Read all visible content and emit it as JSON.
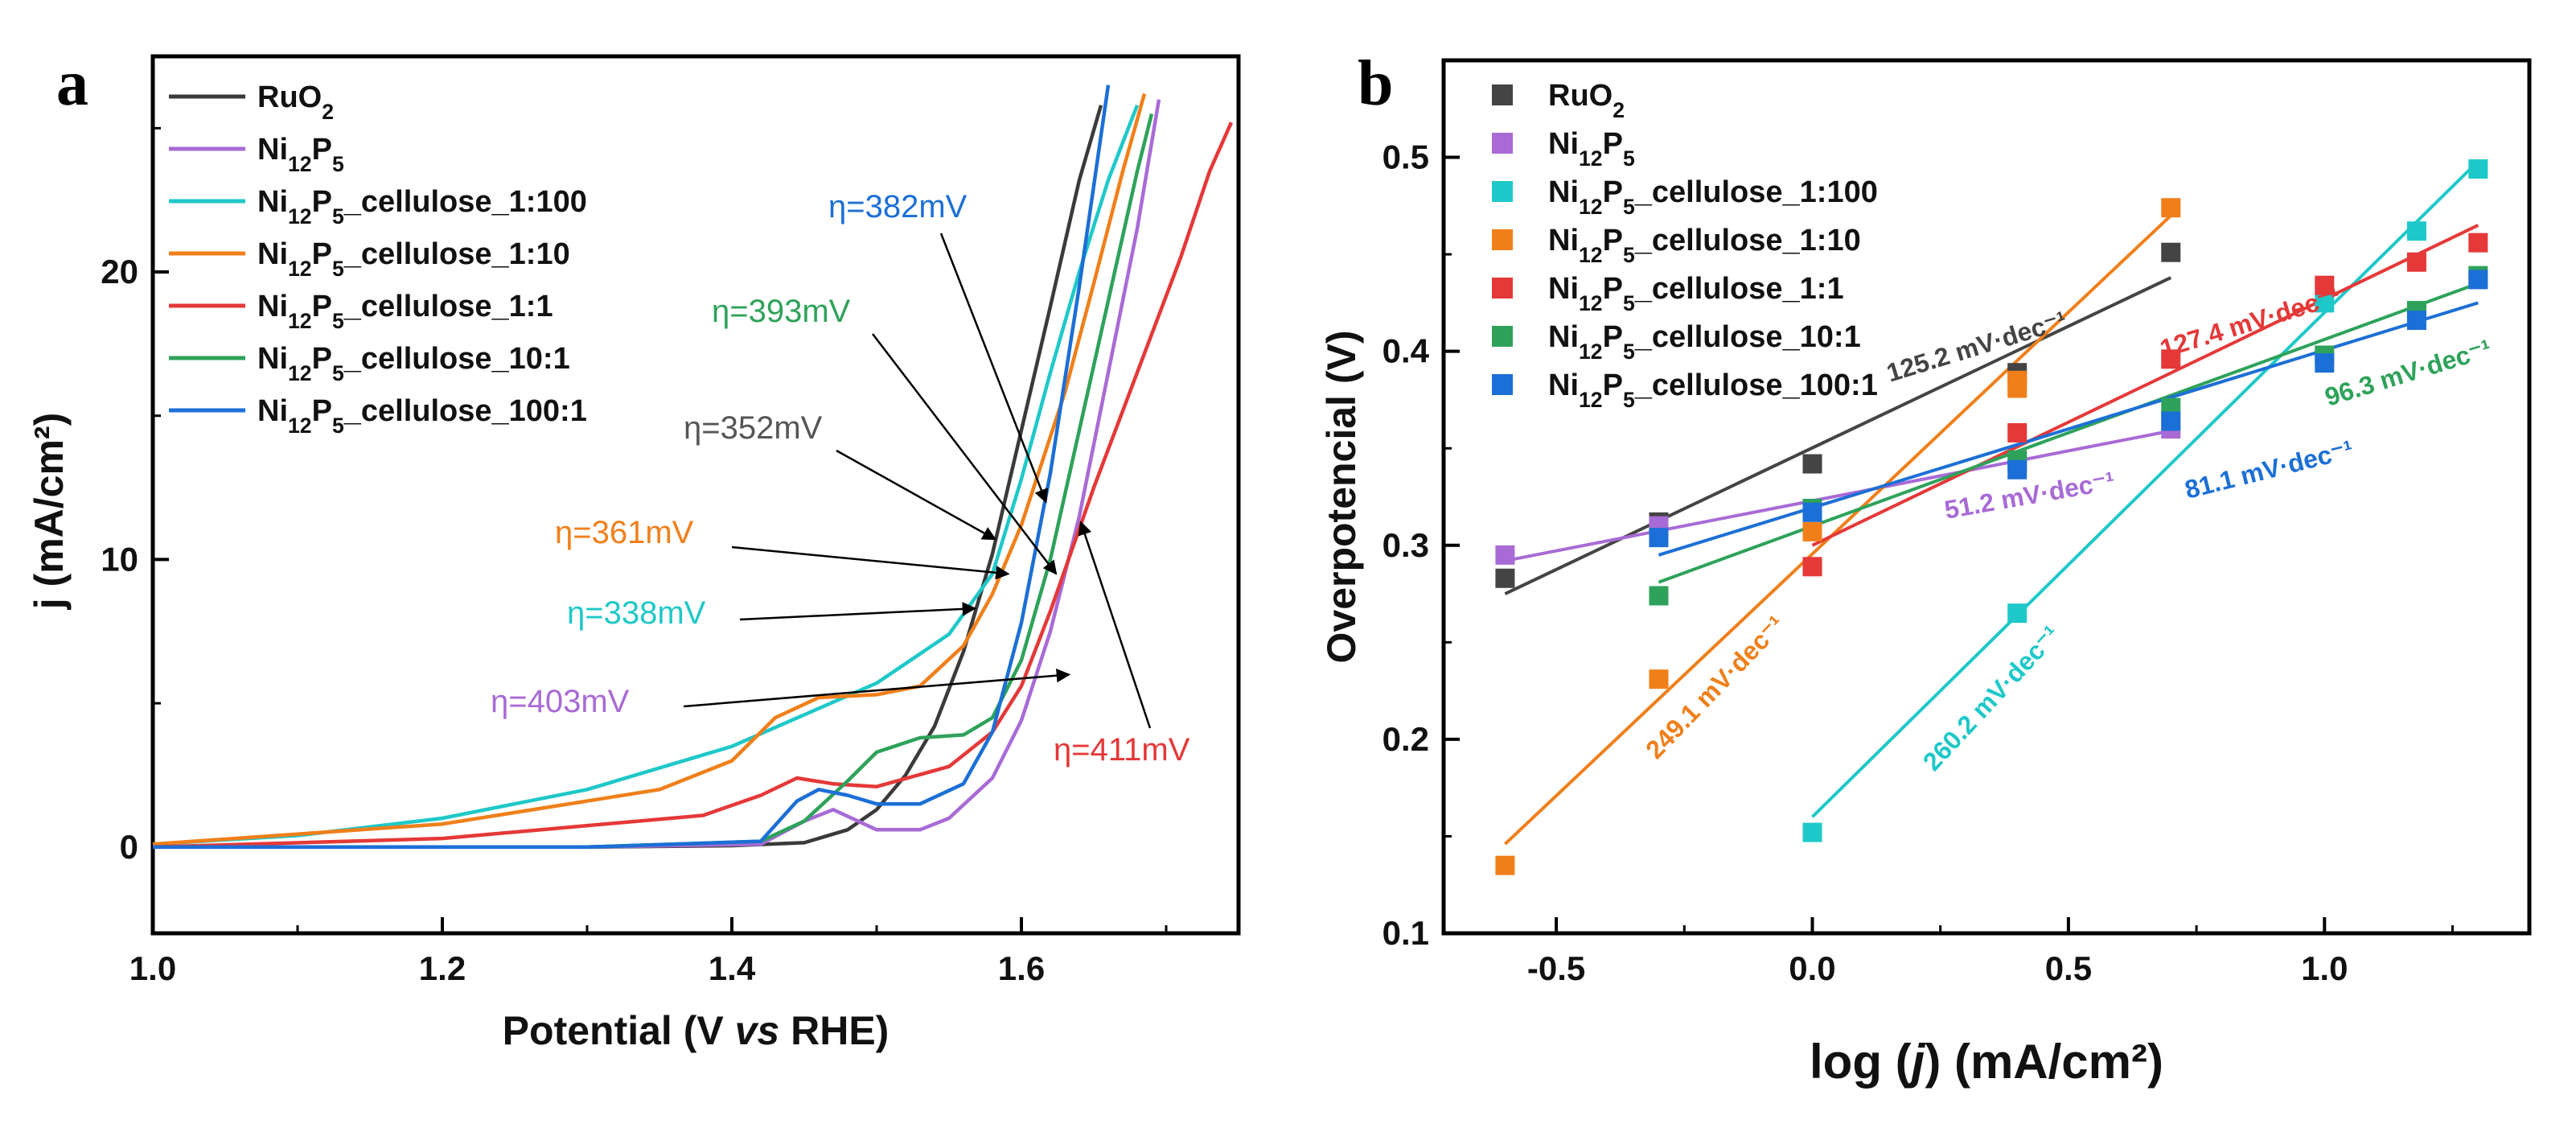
{
  "chart_data": [
    {
      "type": "line",
      "panel": "a",
      "xlabel_pre": "Potential (V ",
      "xlabel_italic": "vs",
      "xlabel_post": " RHE)",
      "ylabel": "j (mA/cm²)",
      "xlim": [
        1.0,
        1.75
      ],
      "ylim": [
        -3,
        27.5
      ],
      "xticks": [
        1.0,
        1.2,
        1.4,
        1.6
      ],
      "xtick_labels": [
        "1.0",
        "1.2",
        "1.4",
        "1.6"
      ],
      "yticks": [
        0,
        10,
        20
      ],
      "ytick_labels": [
        "0",
        "10",
        "20"
      ],
      "legend": "top-left",
      "series": [
        {
          "name": "RuO2",
          "label": {
            "base": "RuO",
            "sub": "2",
            "rest": ""
          },
          "color": "#3a3a3a",
          "x": [
            1.0,
            1.3,
            1.4,
            1.45,
            1.48,
            1.5,
            1.52,
            1.54,
            1.56,
            1.58,
            1.6,
            1.62,
            1.64,
            1.655
          ],
          "y": [
            0,
            0,
            0.05,
            0.15,
            0.6,
            1.3,
            2.5,
            4.2,
            6.8,
            10.2,
            14.5,
            18.8,
            23.2,
            25.8
          ]
        },
        {
          "name": "Ni12P5",
          "label": {
            "base": "Ni",
            "sub": "12",
            "rest": "P",
            "sub2": "5",
            "rest2": ""
          },
          "color": "#a86bd6",
          "x": [
            1.0,
            1.3,
            1.42,
            1.45,
            1.47,
            1.5,
            1.53,
            1.55,
            1.58,
            1.6,
            1.62,
            1.64,
            1.66,
            1.68,
            1.695
          ],
          "y": [
            0,
            0,
            0.1,
            0.9,
            1.3,
            0.6,
            0.6,
            1.0,
            2.4,
            4.4,
            7.5,
            11.5,
            16.5,
            21.5,
            26.0
          ]
        },
        {
          "name": "Ni12P5_cellulose_1:100",
          "label": {
            "base": "Ni",
            "sub": "12",
            "rest": "P",
            "sub2": "5",
            "rest2": "_cellulose_1:100"
          },
          "color": "#1fc8c8",
          "x": [
            1.0,
            1.1,
            1.2,
            1.3,
            1.4,
            1.45,
            1.5,
            1.55,
            1.58,
            1.6,
            1.62,
            1.64,
            1.66,
            1.68
          ],
          "y": [
            0.1,
            0.4,
            1.0,
            2.0,
            3.5,
            4.6,
            5.7,
            7.4,
            9.5,
            12.8,
            16.5,
            20.0,
            23.2,
            25.8
          ]
        },
        {
          "name": "Ni12P5_cellulose_1:10",
          "label": {
            "base": "Ni",
            "sub": "12",
            "rest": "P",
            "sub2": "5",
            "rest2": "_cellulose_1:10"
          },
          "color": "#f07f1a",
          "x": [
            1.0,
            1.2,
            1.35,
            1.4,
            1.43,
            1.46,
            1.5,
            1.53,
            1.56,
            1.58,
            1.6,
            1.63,
            1.65,
            1.67,
            1.685
          ],
          "y": [
            0.1,
            0.8,
            2.0,
            3.0,
            4.5,
            5.2,
            5.3,
            5.6,
            7.0,
            8.8,
            11.2,
            15.8,
            19.6,
            23.5,
            26.2
          ]
        },
        {
          "name": "Ni12P5_cellulose_1:1",
          "label": {
            "base": "Ni",
            "sub": "12",
            "rest": "P",
            "sub2": "5",
            "rest2": "_cellulose_1:1"
          },
          "color": "#e53838",
          "x": [
            1.0,
            1.2,
            1.38,
            1.42,
            1.445,
            1.47,
            1.5,
            1.55,
            1.58,
            1.6,
            1.62,
            1.65,
            1.68,
            1.71,
            1.73,
            1.745
          ],
          "y": [
            0,
            0.3,
            1.1,
            1.8,
            2.4,
            2.2,
            2.1,
            2.8,
            4.0,
            5.6,
            8.2,
            12.5,
            16.5,
            20.5,
            23.5,
            25.2
          ]
        },
        {
          "name": "Ni12P5_cellulose_10:1",
          "label": {
            "base": "Ni",
            "sub": "12",
            "rest": "P",
            "sub2": "5",
            "rest2": "_cellulose_10:1"
          },
          "color": "#2ea25a",
          "x": [
            1.0,
            1.3,
            1.42,
            1.45,
            1.48,
            1.5,
            1.53,
            1.56,
            1.58,
            1.6,
            1.62,
            1.64,
            1.66,
            1.68,
            1.69
          ],
          "y": [
            0,
            0,
            0.2,
            0.9,
            2.3,
            3.3,
            3.8,
            3.9,
            4.5,
            6.5,
            10.0,
            14.5,
            19.0,
            23.5,
            25.5
          ]
        },
        {
          "name": "Ni12P5_cellulose_100:1",
          "label": {
            "base": "Ni",
            "sub": "12",
            "rest": "P",
            "sub2": "5",
            "rest2": "_cellulose_100:1"
          },
          "color": "#1c6fd6",
          "x": [
            1.0,
            1.3,
            1.42,
            1.445,
            1.46,
            1.48,
            1.5,
            1.53,
            1.56,
            1.58,
            1.6,
            1.62,
            1.64,
            1.66
          ],
          "y": [
            0,
            0,
            0.2,
            1.6,
            2.0,
            1.8,
            1.5,
            1.5,
            2.2,
            4.0,
            7.8,
            13.0,
            19.5,
            26.5
          ]
        }
      ],
      "annotations": [
        {
          "text": "η=382mV",
          "color": "#1c6fd6",
          "arrow_to": [
            1.617,
            12.0
          ]
        },
        {
          "text": "η=393mV",
          "color": "#2ea25a",
          "arrow_to": [
            1.624,
            9.5
          ]
        },
        {
          "text": "η=352mV",
          "color": "#555555",
          "arrow_to": [
            1.582,
            10.7
          ]
        },
        {
          "text": "η=361mV",
          "color": "#f07f1a",
          "arrow_to": [
            1.591,
            9.5
          ]
        },
        {
          "text": "η=338mV",
          "color": "#1fc8c8",
          "arrow_to": [
            1.568,
            8.3
          ]
        },
        {
          "text": "η=403mV",
          "color": "#a86bd6",
          "arrow_to": [
            1.633,
            6.0
          ]
        },
        {
          "text": "η=411mV",
          "color": "#e53838",
          "arrow_to": [
            1.641,
            11.3
          ]
        }
      ]
    },
    {
      "type": "scatter",
      "panel": "b",
      "xlabel_pre": "log (",
      "xlabel_italic": "j",
      "xlabel_post": ") (mA/cm²)",
      "ylabel": "Overpotencial (V)",
      "xlim": [
        -0.72,
        1.4
      ],
      "ylim": [
        0.1,
        0.55
      ],
      "xticks": [
        -0.5,
        0.0,
        0.5,
        1.0
      ],
      "xtick_labels": [
        "-0.5",
        "0.0",
        "0.5",
        "1.0"
      ],
      "yticks": [
        0.1,
        0.2,
        0.3,
        0.4,
        0.5
      ],
      "ytick_labels": [
        "0.1",
        "0.2",
        "0.3",
        "0.4",
        "0.5"
      ],
      "legend": "top-left",
      "series": [
        {
          "name": "RuO2",
          "label": {
            "base": "RuO",
            "sub": "2",
            "rest": ""
          },
          "color": "#444444",
          "x": [
            -0.6,
            -0.3,
            0.0,
            0.4,
            0.7
          ],
          "y": [
            0.283,
            0.312,
            0.342,
            0.389,
            0.451
          ],
          "fit_x": [
            -0.6,
            0.7
          ],
          "fit_y": [
            0.275,
            0.438
          ],
          "slope_label": "125.2 mV·dec⁻¹"
        },
        {
          "name": "Ni12P5",
          "label": {
            "base": "Ni",
            "sub": "12",
            "rest": "P",
            "sub2": "5",
            "rest2": ""
          },
          "color": "#a86bd6",
          "x": [
            -0.6,
            -0.3,
            0.0,
            0.4,
            0.7
          ],
          "y": [
            0.295,
            0.31,
            0.318,
            0.343,
            0.36
          ],
          "fit_x": [
            -0.6,
            0.7
          ],
          "fit_y": [
            0.292,
            0.359
          ],
          "slope_label": "51.2 mV·dec⁻¹"
        },
        {
          "name": "Ni12P5_cellulose_1:100",
          "label": {
            "base": "Ni",
            "sub": "12",
            "rest": "P",
            "sub2": "5",
            "rest2": "_cellulose_1:100"
          },
          "color": "#1fc8c8",
          "x": [
            0.0,
            0.4,
            1.0,
            1.18,
            1.3
          ],
          "y": [
            0.152,
            0.265,
            0.425,
            0.462,
            0.494
          ],
          "fit_x": [
            0.0,
            1.3
          ],
          "fit_y": [
            0.16,
            0.498
          ],
          "slope_label": "260.2 mV·dec⁻¹"
        },
        {
          "name": "Ni12P5_cellulose_1:10",
          "label": {
            "base": "Ni",
            "sub": "12",
            "rest": "P",
            "sub2": "5",
            "rest2": "_cellulose_1:10"
          },
          "color": "#f07f1a",
          "x": [
            -0.6,
            -0.3,
            0.0,
            0.4,
            0.4,
            0.7
          ],
          "y": [
            0.135,
            0.231,
            0.307,
            0.381,
            0.385,
            0.474
          ],
          "fit_x": [
            -0.6,
            0.7
          ],
          "fit_y": [
            0.146,
            0.47
          ],
          "slope_label": "249.1 mV·dec⁻¹"
        },
        {
          "name": "Ni12P5_cellulose_1:1",
          "label": {
            "base": "Ni",
            "sub": "12",
            "rest": "P",
            "sub2": "5",
            "rest2": "_cellulose_1:1"
          },
          "color": "#e53838",
          "x": [
            0.0,
            0.4,
            0.7,
            1.0,
            1.18,
            1.3
          ],
          "y": [
            0.289,
            0.358,
            0.396,
            0.434,
            0.446,
            0.456
          ],
          "fit_x": [
            0.0,
            1.3
          ],
          "fit_y": [
            0.3,
            0.465
          ],
          "slope_label": "127.4 mV·dec⁻¹"
        },
        {
          "name": "Ni12P5_cellulose_10:1",
          "label": {
            "base": "Ni",
            "sub": "12",
            "rest": "P",
            "sub2": "5",
            "rest2": "_cellulose_10:1"
          },
          "color": "#2ea25a",
          "x": [
            -0.3,
            0.0,
            0.4,
            0.7,
            1.0,
            1.18,
            1.3
          ],
          "y": [
            0.274,
            0.319,
            0.344,
            0.371,
            0.398,
            0.421,
            0.439
          ],
          "fit_x": [
            -0.3,
            1.3
          ],
          "fit_y": [
            0.281,
            0.435
          ],
          "slope_label": "96.3 mV·dec⁻¹"
        },
        {
          "name": "Ni12P5_cellulose_100:1",
          "label": {
            "base": "Ni",
            "sub": "12",
            "rest": "P",
            "sub2": "5",
            "rest2": "_cellulose_100:1"
          },
          "color": "#1c6fd6",
          "x": [
            -0.3,
            0.0,
            0.4,
            0.7,
            1.0,
            1.18,
            1.3
          ],
          "y": [
            0.304,
            0.317,
            0.339,
            0.364,
            0.394,
            0.416,
            0.437
          ],
          "fit_x": [
            -0.3,
            1.3
          ],
          "fit_y": [
            0.295,
            0.425
          ],
          "slope_label": "81.1 mV·dec⁻¹"
        }
      ]
    }
  ]
}
